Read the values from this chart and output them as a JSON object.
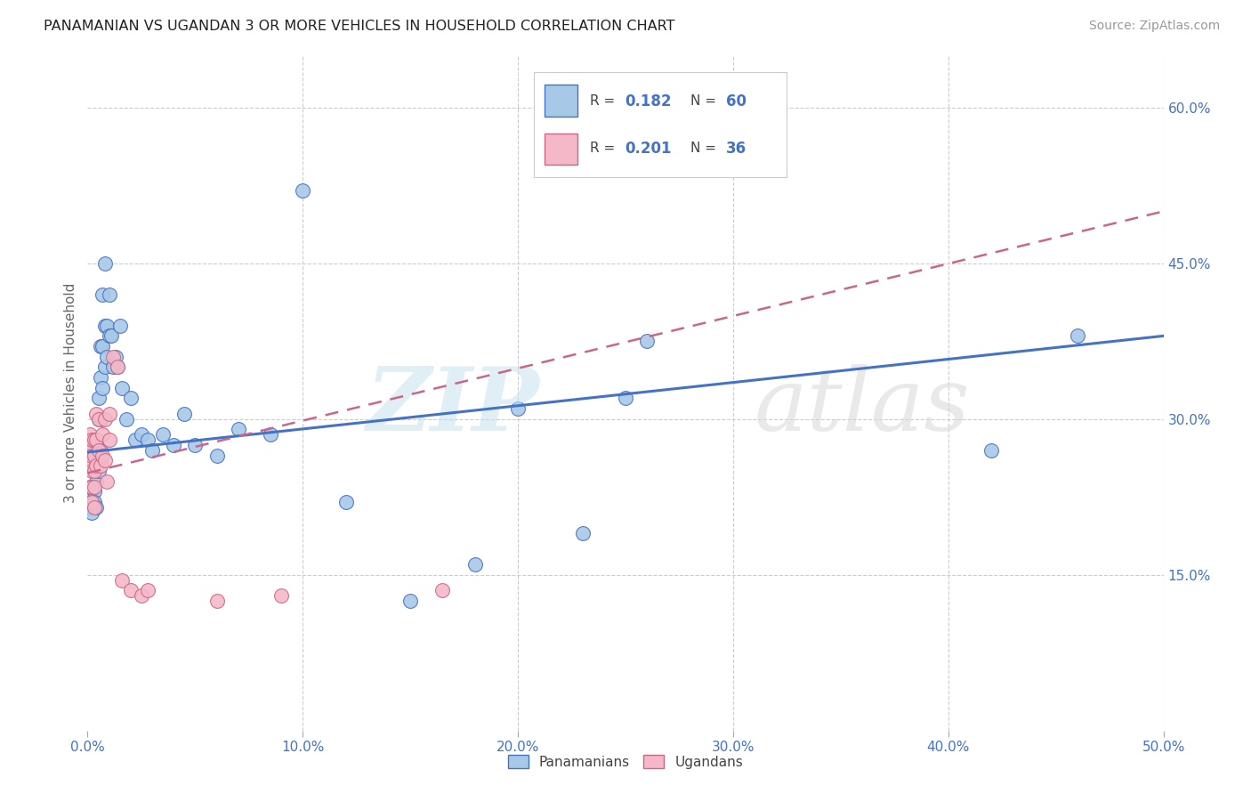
{
  "title": "PANAMANIAN VS UGANDAN 3 OR MORE VEHICLES IN HOUSEHOLD CORRELATION CHART",
  "source": "Source: ZipAtlas.com",
  "ylabel": "3 or more Vehicles in Household",
  "xlim": [
    0.0,
    0.5
  ],
  "ylim": [
    0.0,
    0.65
  ],
  "xtick_vals": [
    0.0,
    0.1,
    0.2,
    0.3,
    0.4,
    0.5
  ],
  "xtick_labels": [
    "0.0%",
    "10.0%",
    "20.0%",
    "30.0%",
    "40.0%",
    "50.0%"
  ],
  "ytick_vals_right": [
    0.15,
    0.3,
    0.45,
    0.6
  ],
  "ytick_labels_right": [
    "15.0%",
    "30.0%",
    "45.0%",
    "60.0%"
  ],
  "panamanian_color": "#a8c8e8",
  "panamanian_edge": "#4472c4",
  "ugandan_color": "#f4b8c8",
  "ugandan_edge": "#cc6688",
  "trend_pan_color": "#4472c4",
  "trend_uga_color": "#cc6688",
  "background_color": "#ffffff",
  "grid_color": "#cccccc",
  "pan_x": [
    0.001,
    0.001,
    0.002,
    0.002,
    0.002,
    0.003,
    0.003,
    0.003,
    0.003,
    0.004,
    0.004,
    0.004,
    0.004,
    0.005,
    0.005,
    0.005,
    0.005,
    0.006,
    0.006,
    0.006,
    0.006,
    0.007,
    0.007,
    0.007,
    0.008,
    0.008,
    0.008,
    0.009,
    0.009,
    0.01,
    0.01,
    0.011,
    0.012,
    0.013,
    0.014,
    0.015,
    0.016,
    0.018,
    0.02,
    0.022,
    0.025,
    0.028,
    0.03,
    0.035,
    0.04,
    0.045,
    0.05,
    0.06,
    0.07,
    0.085,
    0.1,
    0.12,
    0.15,
    0.18,
    0.2,
    0.23,
    0.25,
    0.26,
    0.42,
    0.46
  ],
  "pan_y": [
    0.225,
    0.215,
    0.235,
    0.22,
    0.21,
    0.27,
    0.25,
    0.23,
    0.22,
    0.28,
    0.26,
    0.24,
    0.215,
    0.32,
    0.3,
    0.27,
    0.25,
    0.37,
    0.34,
    0.3,
    0.27,
    0.42,
    0.37,
    0.33,
    0.45,
    0.39,
    0.35,
    0.39,
    0.36,
    0.42,
    0.38,
    0.38,
    0.35,
    0.36,
    0.35,
    0.39,
    0.33,
    0.3,
    0.32,
    0.28,
    0.285,
    0.28,
    0.27,
    0.285,
    0.275,
    0.305,
    0.275,
    0.265,
    0.29,
    0.285,
    0.52,
    0.22,
    0.125,
    0.16,
    0.31,
    0.19,
    0.32,
    0.375,
    0.27,
    0.38
  ],
  "uga_x": [
    0.001,
    0.001,
    0.001,
    0.001,
    0.002,
    0.002,
    0.002,
    0.002,
    0.002,
    0.003,
    0.003,
    0.003,
    0.003,
    0.003,
    0.004,
    0.004,
    0.004,
    0.005,
    0.005,
    0.006,
    0.007,
    0.007,
    0.008,
    0.008,
    0.009,
    0.01,
    0.01,
    0.012,
    0.014,
    0.016,
    0.02,
    0.025,
    0.028,
    0.06,
    0.09,
    0.165
  ],
  "uga_y": [
    0.285,
    0.27,
    0.255,
    0.235,
    0.28,
    0.265,
    0.25,
    0.235,
    0.22,
    0.28,
    0.265,
    0.25,
    0.235,
    0.215,
    0.305,
    0.28,
    0.255,
    0.3,
    0.27,
    0.255,
    0.285,
    0.265,
    0.3,
    0.26,
    0.24,
    0.305,
    0.28,
    0.36,
    0.35,
    0.145,
    0.135,
    0.13,
    0.135,
    0.125,
    0.13,
    0.135
  ],
  "legend_r1": "R = 0.182",
  "legend_n1": "N = 60",
  "legend_r2": "R = 0.201",
  "legend_n2": "N = 36",
  "watermark1": "ZIP",
  "watermark2": "atlas"
}
